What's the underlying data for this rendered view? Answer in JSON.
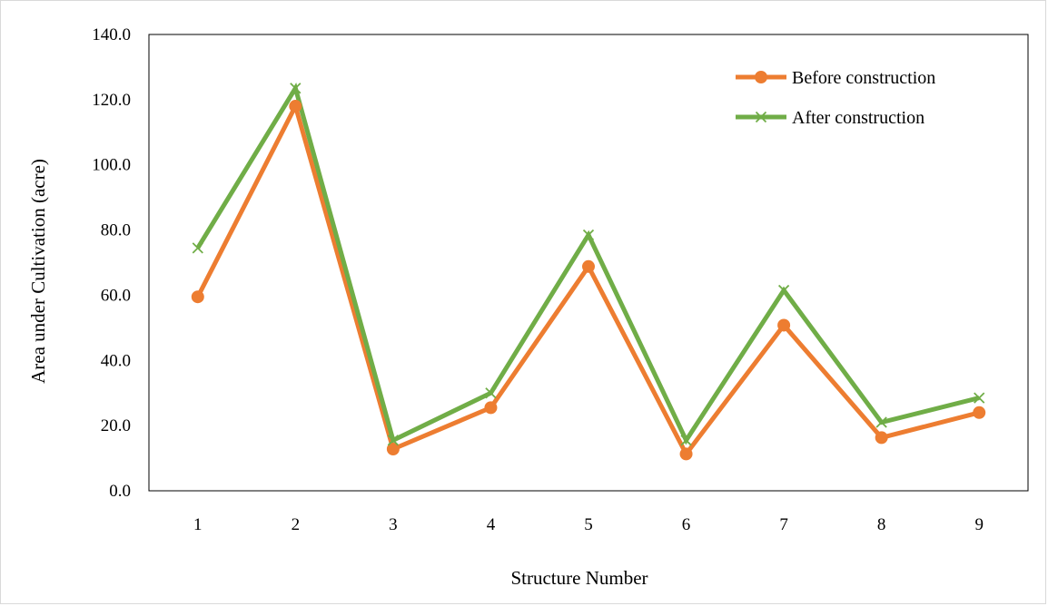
{
  "chart_data": {
    "type": "line",
    "title": "",
    "xlabel": "Structure Number",
    "ylabel": "Area under Cultivation (acre)",
    "categories": [
      "1",
      "2",
      "3",
      "4",
      "5",
      "6",
      "7",
      "8",
      "9"
    ],
    "ylim": [
      0,
      140
    ],
    "yticks": [
      "0.0",
      "20.0",
      "40.0",
      "60.0",
      "80.0",
      "100.0",
      "120.0",
      "140.0"
    ],
    "yticks_values": [
      0,
      20,
      40,
      60,
      80,
      100,
      120,
      140
    ],
    "grid": false,
    "legend_position": "top-right",
    "series": [
      {
        "name": "Before construction",
        "marker": "circle",
        "color": "#ed7d31",
        "values": [
          59.5,
          118.0,
          12.8,
          25.5,
          68.8,
          11.3,
          50.8,
          16.3,
          24.0
        ]
      },
      {
        "name": "After construction",
        "marker": "x",
        "color": "#70ad47",
        "values": [
          74.5,
          123.5,
          15.5,
          30.0,
          78.5,
          15.5,
          61.5,
          21.0,
          28.5
        ]
      }
    ]
  }
}
